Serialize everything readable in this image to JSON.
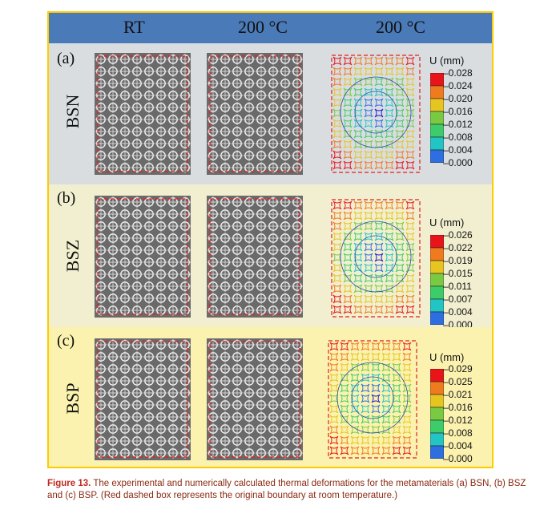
{
  "header": {
    "col1": "RT",
    "col2": "200 °C",
    "col3": "200 °C"
  },
  "colors": {
    "header": "#4a7ab8",
    "border": "#ffcc00",
    "caption_label": "#c0271c",
    "caption_text": "#8a2a12"
  },
  "rows": [
    {
      "letter": "(a)",
      "name": "BSN",
      "legend_title": "U (mm)",
      "ticks": [
        "0.028",
        "0.024",
        "0.020",
        "0.016",
        "0.012",
        "0.008",
        "0.004",
        "0.000"
      ]
    },
    {
      "letter": "(b)",
      "name": "BSZ",
      "legend_title": "U (mm)",
      "ticks": [
        "0.026",
        "0.022",
        "0.019",
        "0.015",
        "0.011",
        "0.007",
        "0.004",
        "0.000"
      ]
    },
    {
      "letter": "(c)",
      "name": "BSP",
      "legend_title": "U (mm)",
      "ticks": [
        "0.029",
        "0.025",
        "0.021",
        "0.016",
        "0.012",
        "0.008",
        "0.004",
        "0.000"
      ]
    }
  ],
  "caption": {
    "label": "Figure 13.",
    "text": " The experimental and numerically calculated thermal deformations for the metamaterials (a) BSN, (b) BSZ and (c) BSP. (Red dashed box represents the original boundary at room temperature.)"
  }
}
